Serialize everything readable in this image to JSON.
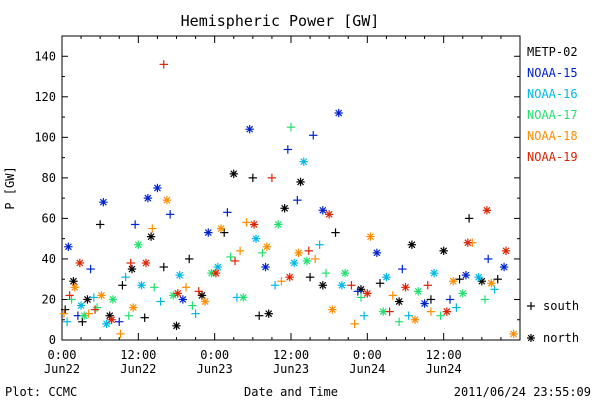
{
  "chart_data": {
    "type": "scatter",
    "title": "Hemispheric Power [GW]",
    "ylabel": "P [GW]",
    "xlabel": "Date and Time",
    "ylim": [
      0,
      150
    ],
    "xlim": [
      0,
      72
    ],
    "yticks": [
      0,
      20,
      40,
      60,
      80,
      100,
      120,
      140
    ],
    "xticks": [
      {
        "x": 0,
        "time": "0:00",
        "date": "Jun22"
      },
      {
        "x": 12,
        "time": "12:00",
        "date": "Jun22"
      },
      {
        "x": 24,
        "time": "0:00",
        "date": "Jun23"
      },
      {
        "x": 36,
        "time": "12:00",
        "date": "Jun23"
      },
      {
        "x": 48,
        "time": "0:00",
        "date": "Jun24"
      },
      {
        "x": 60,
        "time": "12:00",
        "date": "Jun24"
      }
    ],
    "grid": false,
    "legend": {
      "placement": "right",
      "markers": [
        {
          "symbol": "+",
          "label": "south"
        },
        {
          "symbol": "*",
          "label": "north"
        }
      ]
    },
    "series": [
      {
        "name": "METP-02",
        "color": "#000000",
        "points": [
          {
            "x": 0.5,
            "y": 15,
            "h": "s"
          },
          {
            "x": 1.8,
            "y": 29,
            "h": "n"
          },
          {
            "x": 3.2,
            "y": 9,
            "h": "s"
          },
          {
            "x": 4.0,
            "y": 20,
            "h": "n"
          },
          {
            "x": 6.0,
            "y": 57,
            "h": "s"
          },
          {
            "x": 7.5,
            "y": 12,
            "h": "n"
          },
          {
            "x": 9.5,
            "y": 27,
            "h": "s"
          },
          {
            "x": 11.0,
            "y": 35,
            "h": "n"
          },
          {
            "x": 13.0,
            "y": 11,
            "h": "s"
          },
          {
            "x": 14.0,
            "y": 51,
            "h": "n"
          },
          {
            "x": 16.0,
            "y": 36,
            "h": "s"
          },
          {
            "x": 18.0,
            "y": 7,
            "h": "n"
          },
          {
            "x": 20.0,
            "y": 40,
            "h": "s"
          },
          {
            "x": 22.0,
            "y": 22,
            "h": "n"
          },
          {
            "x": 25.5,
            "y": 53,
            "h": "s"
          },
          {
            "x": 27.0,
            "y": 82,
            "h": "n"
          },
          {
            "x": 30.0,
            "y": 80,
            "h": "s"
          },
          {
            "x": 31.0,
            "y": 12,
            "h": "s"
          },
          {
            "x": 32.5,
            "y": 13,
            "h": "n"
          },
          {
            "x": 35.0,
            "y": 65,
            "h": "n"
          },
          {
            "x": 37.5,
            "y": 78,
            "h": "n"
          },
          {
            "x": 39.0,
            "y": 31,
            "h": "s"
          },
          {
            "x": 41.0,
            "y": 27,
            "h": "n"
          },
          {
            "x": 43.0,
            "y": 53,
            "h": "s"
          },
          {
            "x": 47.0,
            "y": 25,
            "h": "n"
          },
          {
            "x": 50.0,
            "y": 28,
            "h": "s"
          },
          {
            "x": 53.0,
            "y": 19,
            "h": "n"
          },
          {
            "x": 55.0,
            "y": 47,
            "h": "n"
          },
          {
            "x": 58.0,
            "y": 20,
            "h": "s"
          },
          {
            "x": 60.0,
            "y": 44,
            "h": "n"
          },
          {
            "x": 62.5,
            "y": 30,
            "h": "s"
          },
          {
            "x": 64.0,
            "y": 60,
            "h": "s"
          },
          {
            "x": 66.0,
            "y": 29,
            "h": "n"
          },
          {
            "x": 68.5,
            "y": 30,
            "h": "s"
          }
        ]
      },
      {
        "name": "NOAA-15",
        "color": "#0022cc",
        "points": [
          {
            "x": 1.0,
            "y": 46,
            "h": "n"
          },
          {
            "x": 2.5,
            "y": 12,
            "h": "s"
          },
          {
            "x": 4.5,
            "y": 35,
            "h": "s"
          },
          {
            "x": 6.5,
            "y": 68,
            "h": "n"
          },
          {
            "x": 9.0,
            "y": 9,
            "h": "s"
          },
          {
            "x": 11.5,
            "y": 57,
            "h": "s"
          },
          {
            "x": 13.5,
            "y": 70,
            "h": "n"
          },
          {
            "x": 15.0,
            "y": 75,
            "h": "n"
          },
          {
            "x": 17.0,
            "y": 62,
            "h": "s"
          },
          {
            "x": 19.0,
            "y": 20,
            "h": "n"
          },
          {
            "x": 23.0,
            "y": 53,
            "h": "n"
          },
          {
            "x": 26.0,
            "y": 63,
            "h": "s"
          },
          {
            "x": 29.5,
            "y": 104,
            "h": "n"
          },
          {
            "x": 32.0,
            "y": 36,
            "h": "n"
          },
          {
            "x": 35.5,
            "y": 94,
            "h": "s"
          },
          {
            "x": 37.0,
            "y": 69,
            "h": "s"
          },
          {
            "x": 39.5,
            "y": 101,
            "h": "s"
          },
          {
            "x": 41.0,
            "y": 64,
            "h": "n"
          },
          {
            "x": 43.5,
            "y": 112,
            "h": "n"
          },
          {
            "x": 46.5,
            "y": 24,
            "h": "s"
          },
          {
            "x": 49.5,
            "y": 43,
            "h": "n"
          },
          {
            "x": 53.5,
            "y": 35,
            "h": "s"
          },
          {
            "x": 57.0,
            "y": 18,
            "h": "n"
          },
          {
            "x": 61.0,
            "y": 20,
            "h": "s"
          },
          {
            "x": 63.5,
            "y": 32,
            "h": "n"
          },
          {
            "x": 67.0,
            "y": 40,
            "h": "s"
          },
          {
            "x": 69.5,
            "y": 36,
            "h": "n"
          }
        ]
      },
      {
        "name": "NOAA-16",
        "color": "#00b8e8",
        "points": [
          {
            "x": 0.8,
            "y": 9,
            "h": "s"
          },
          {
            "x": 3.0,
            "y": 17,
            "h": "n"
          },
          {
            "x": 5.0,
            "y": 21,
            "h": "s"
          },
          {
            "x": 7.0,
            "y": 8,
            "h": "n"
          },
          {
            "x": 10.0,
            "y": 31,
            "h": "s"
          },
          {
            "x": 12.5,
            "y": 27,
            "h": "n"
          },
          {
            "x": 15.5,
            "y": 19,
            "h": "s"
          },
          {
            "x": 18.5,
            "y": 32,
            "h": "n"
          },
          {
            "x": 21.0,
            "y": 13,
            "h": "s"
          },
          {
            "x": 24.5,
            "y": 36,
            "h": "n"
          },
          {
            "x": 27.5,
            "y": 21,
            "h": "s"
          },
          {
            "x": 30.5,
            "y": 50,
            "h": "n"
          },
          {
            "x": 33.5,
            "y": 27,
            "h": "s"
          },
          {
            "x": 36.5,
            "y": 38,
            "h": "n"
          },
          {
            "x": 38.0,
            "y": 88,
            "h": "n"
          },
          {
            "x": 40.5,
            "y": 47,
            "h": "s"
          },
          {
            "x": 44.0,
            "y": 27,
            "h": "n"
          },
          {
            "x": 47.5,
            "y": 12,
            "h": "s"
          },
          {
            "x": 51.0,
            "y": 31,
            "h": "n"
          },
          {
            "x": 54.5,
            "y": 12,
            "h": "s"
          },
          {
            "x": 58.5,
            "y": 33,
            "h": "n"
          },
          {
            "x": 62.0,
            "y": 16,
            "h": "s"
          },
          {
            "x": 65.5,
            "y": 31,
            "h": "n"
          },
          {
            "x": 68.0,
            "y": 25,
            "h": "s"
          }
        ]
      },
      {
        "name": "NOAA-17",
        "color": "#22e070",
        "points": [
          {
            "x": 1.5,
            "y": 20,
            "h": "s"
          },
          {
            "x": 3.5,
            "y": 12,
            "h": "n"
          },
          {
            "x": 5.5,
            "y": 16,
            "h": "s"
          },
          {
            "x": 8.0,
            "y": 20,
            "h": "n"
          },
          {
            "x": 10.5,
            "y": 12,
            "h": "s"
          },
          {
            "x": 12.0,
            "y": 47,
            "h": "n"
          },
          {
            "x": 14.5,
            "y": 26,
            "h": "s"
          },
          {
            "x": 17.5,
            "y": 22,
            "h": "n"
          },
          {
            "x": 20.5,
            "y": 17,
            "h": "s"
          },
          {
            "x": 23.5,
            "y": 33,
            "h": "n"
          },
          {
            "x": 26.5,
            "y": 41,
            "h": "s"
          },
          {
            "x": 28.5,
            "y": 21,
            "h": "n"
          },
          {
            "x": 31.5,
            "y": 43,
            "h": "s"
          },
          {
            "x": 34.0,
            "y": 57,
            "h": "n"
          },
          {
            "x": 36.0,
            "y": 105,
            "h": "s"
          },
          {
            "x": 38.5,
            "y": 39,
            "h": "n"
          },
          {
            "x": 41.5,
            "y": 33,
            "h": "s"
          },
          {
            "x": 44.5,
            "y": 33,
            "h": "n"
          },
          {
            "x": 47.0,
            "y": 21,
            "h": "s"
          },
          {
            "x": 50.5,
            "y": 14,
            "h": "n"
          },
          {
            "x": 53.0,
            "y": 9,
            "h": "s"
          },
          {
            "x": 56.0,
            "y": 24,
            "h": "n"
          },
          {
            "x": 59.5,
            "y": 12,
            "h": "s"
          },
          {
            "x": 63.0,
            "y": 23,
            "h": "n"
          },
          {
            "x": 66.5,
            "y": 20,
            "h": "s"
          }
        ]
      },
      {
        "name": "NOAA-18",
        "color": "#ff8c00",
        "points": [
          {
            "x": 0.3,
            "y": 13,
            "h": "s"
          },
          {
            "x": 2.0,
            "y": 26,
            "h": "n"
          },
          {
            "x": 4.2,
            "y": 13,
            "h": "s"
          },
          {
            "x": 6.2,
            "y": 22,
            "h": "n"
          },
          {
            "x": 9.2,
            "y": 3,
            "h": "s"
          },
          {
            "x": 11.2,
            "y": 16,
            "h": "n"
          },
          {
            "x": 14.2,
            "y": 55,
            "h": "s"
          },
          {
            "x": 16.5,
            "y": 69,
            "h": "n"
          },
          {
            "x": 19.5,
            "y": 26,
            "h": "s"
          },
          {
            "x": 22.5,
            "y": 19,
            "h": "n"
          },
          {
            "x": 25.0,
            "y": 55,
            "h": "n"
          },
          {
            "x": 28.0,
            "y": 44,
            "h": "s"
          },
          {
            "x": 29.0,
            "y": 58,
            "h": "s"
          },
          {
            "x": 32.2,
            "y": 46,
            "h": "n"
          },
          {
            "x": 34.5,
            "y": 29,
            "h": "s"
          },
          {
            "x": 37.2,
            "y": 43,
            "h": "n"
          },
          {
            "x": 39.8,
            "y": 40,
            "h": "s"
          },
          {
            "x": 42.5,
            "y": 15,
            "h": "n"
          },
          {
            "x": 46.0,
            "y": 8,
            "h": "s"
          },
          {
            "x": 48.5,
            "y": 51,
            "h": "n"
          },
          {
            "x": 52.0,
            "y": 22,
            "h": "s"
          },
          {
            "x": 55.5,
            "y": 10,
            "h": "n"
          },
          {
            "x": 58.0,
            "y": 14,
            "h": "s"
          },
          {
            "x": 61.5,
            "y": 29,
            "h": "n"
          },
          {
            "x": 64.5,
            "y": 48,
            "h": "s"
          },
          {
            "x": 67.5,
            "y": 28,
            "h": "n"
          },
          {
            "x": 71.0,
            "y": 3,
            "h": "n"
          }
        ]
      },
      {
        "name": "NOAA-19",
        "color": "#dd2200",
        "points": [
          {
            "x": 1.2,
            "y": 22,
            "h": "s"
          },
          {
            "x": 2.8,
            "y": 38,
            "h": "n"
          },
          {
            "x": 5.2,
            "y": 15,
            "h": "s"
          },
          {
            "x": 7.8,
            "y": 10,
            "h": "n"
          },
          {
            "x": 10.8,
            "y": 38,
            "h": "s"
          },
          {
            "x": 13.2,
            "y": 38,
            "h": "n"
          },
          {
            "x": 16.0,
            "y": 136,
            "h": "s"
          },
          {
            "x": 18.2,
            "y": 23,
            "h": "n"
          },
          {
            "x": 21.5,
            "y": 24,
            "h": "s"
          },
          {
            "x": 24.2,
            "y": 33,
            "h": "n"
          },
          {
            "x": 27.2,
            "y": 39,
            "h": "s"
          },
          {
            "x": 30.2,
            "y": 57,
            "h": "n"
          },
          {
            "x": 33.0,
            "y": 80,
            "h": "s"
          },
          {
            "x": 35.8,
            "y": 31,
            "h": "n"
          },
          {
            "x": 38.8,
            "y": 44,
            "h": "s"
          },
          {
            "x": 42.0,
            "y": 62,
            "h": "n"
          },
          {
            "x": 45.5,
            "y": 27,
            "h": "s"
          },
          {
            "x": 48.0,
            "y": 23,
            "h": "n"
          },
          {
            "x": 51.5,
            "y": 14,
            "h": "s"
          },
          {
            "x": 54.0,
            "y": 26,
            "h": "n"
          },
          {
            "x": 57.5,
            "y": 27,
            "h": "s"
          },
          {
            "x": 60.5,
            "y": 14,
            "h": "n"
          },
          {
            "x": 63.8,
            "y": 48,
            "h": "n"
          },
          {
            "x": 66.8,
            "y": 64,
            "h": "n"
          },
          {
            "x": 69.8,
            "y": 44,
            "h": "n"
          }
        ]
      }
    ]
  },
  "footer": {
    "left": "Plot: CCMC",
    "timestamp": "2011/06/24 23:55:09"
  }
}
